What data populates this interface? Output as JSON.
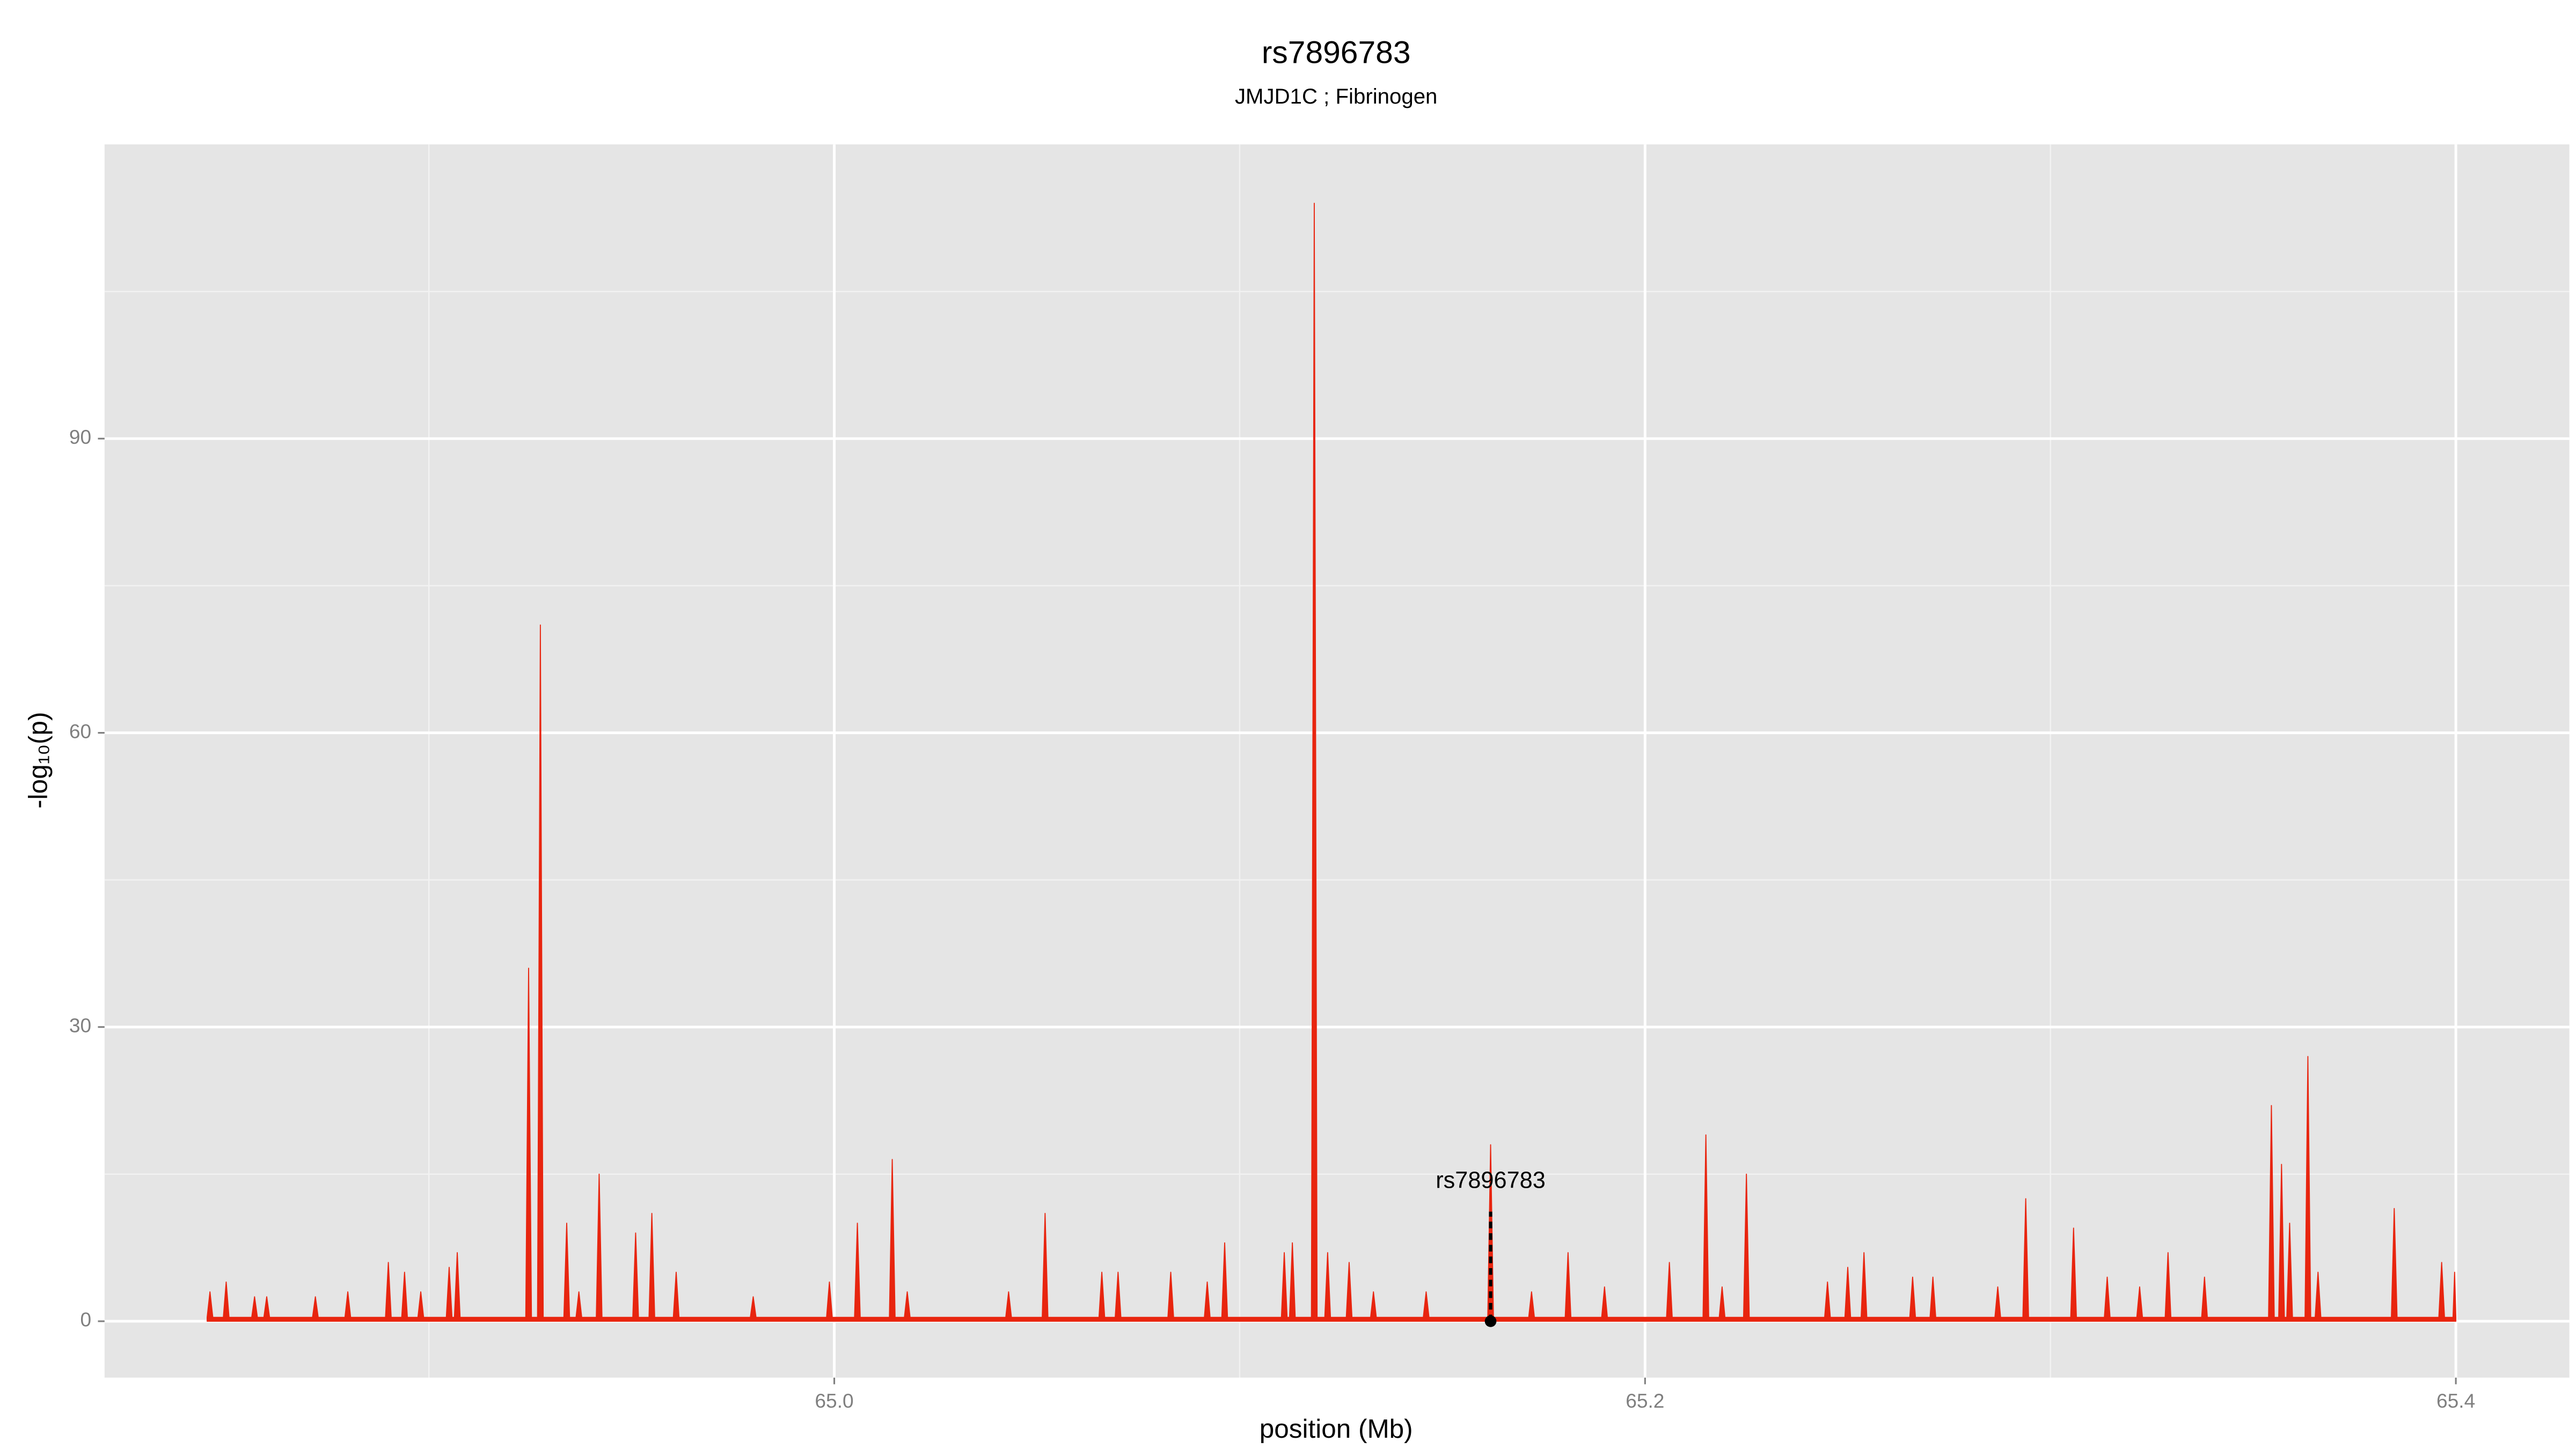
{
  "chart_data": {
    "type": "area",
    "title": "rs7896783",
    "subtitle": "JMJD1C ; Fibrinogen",
    "x_label": "position (Mb)",
    "y_label": "-log₁₀(p)",
    "xlim": [
      64.82,
      65.428
    ],
    "ylim": [
      -5.75,
      120
    ],
    "xticks": [
      {
        "value": 65,
        "label": "65.0"
      },
      {
        "value": 65.2,
        "label": "65.2"
      },
      {
        "value": 65.4,
        "label": "65.4"
      }
    ],
    "yticks": [
      0,
      30,
      60,
      90
    ],
    "grid": true,
    "color": "#e8250f",
    "annotation": {
      "text": "rs7896783",
      "x": 65.1619,
      "y": 0
    },
    "x": [
      64.8453,
      64.846,
      64.8467,
      64.8493,
      64.85,
      64.8507,
      64.8563,
      64.857,
      64.8577,
      64.8593,
      64.86,
      64.8607,
      64.8713,
      64.872,
      64.8727,
      64.8793,
      64.88,
      64.8807,
      64.8893,
      64.89,
      64.8907,
      64.8933,
      64.894,
      64.8947,
      64.8973,
      64.898,
      64.8987,
      64.9043,
      64.905,
      64.9057,
      64.9063,
      64.907,
      64.9077,
      64.9239,
      64.9246,
      64.9253,
      64.9268,
      64.9275,
      64.9282,
      64.9333,
      64.934,
      64.9347,
      64.9363,
      64.937,
      64.9377,
      64.9413,
      64.942,
      64.9427,
      64.9503,
      64.951,
      64.9517,
      64.9543,
      64.955,
      64.9557,
      64.9603,
      64.961,
      64.9617,
      64.9793,
      64.98,
      64.9807,
      64.9981,
      64.9988,
      64.9995,
      65.005,
      65.0057,
      65.0064,
      65.0136,
      65.0143,
      65.015,
      65.0173,
      65.018,
      65.0187,
      65.0423,
      65.043,
      65.0437,
      65.0513,
      65.052,
      65.0527,
      65.0653,
      65.066,
      65.0667,
      65.0693,
      65.07,
      65.0707,
      65.0823,
      65.083,
      65.0837,
      65.0913,
      65.092,
      65.0927,
      65.0956,
      65.0963,
      65.097,
      65.1103,
      65.111,
      65.1117,
      65.1123,
      65.113,
      65.1137,
      65.1177,
      65.1184,
      65.1191,
      65.121,
      65.1217,
      65.1224,
      65.1263,
      65.127,
      65.1277,
      65.1323,
      65.133,
      65.1337,
      65.1453,
      65.146,
      65.1467,
      65.1612,
      65.1619,
      65.1626,
      65.1713,
      65.172,
      65.1727,
      65.1803,
      65.181,
      65.1817,
      65.1893,
      65.19,
      65.1907,
      65.2053,
      65.206,
      65.2067,
      65.2143,
      65.215,
      65.2157,
      65.2183,
      65.219,
      65.2197,
      65.2243,
      65.225,
      65.2257,
      65.2443,
      65.245,
      65.2457,
      65.2493,
      65.25,
      65.2507,
      65.2533,
      65.254,
      65.2547,
      65.2653,
      65.266,
      65.2667,
      65.2703,
      65.271,
      65.2717,
      65.2863,
      65.287,
      65.2877,
      65.2932,
      65.2939,
      65.2946,
      65.305,
      65.3057,
      65.3064,
      65.3133,
      65.314,
      65.3147,
      65.3213,
      65.322,
      65.3227,
      65.3283,
      65.329,
      65.3297,
      65.3373,
      65.338,
      65.3387,
      65.3538,
      65.3545,
      65.3552,
      65.3563,
      65.357,
      65.3577,
      65.3583,
      65.359,
      65.3597,
      65.3628,
      65.3635,
      65.3642,
      65.3653,
      65.366,
      65.3667,
      65.3841,
      65.3848,
      65.3855,
      65.3958,
      65.3965,
      65.3972,
      65.3993,
      65.3997,
      65.4
    ],
    "values": [
      0.4,
      3,
      0.4,
      0.4,
      4,
      0.4,
      0.4,
      2.5,
      0.4,
      0.4,
      2.5,
      0.4,
      0.4,
      2.5,
      0.4,
      0.4,
      3,
      0.4,
      0.4,
      6,
      0.4,
      0.4,
      5,
      0.4,
      0.4,
      3,
      0.4,
      0.4,
      5.5,
      0.4,
      0.4,
      7,
      0.4,
      0.4,
      36,
      0.4,
      0.4,
      71,
      0.4,
      0.4,
      10,
      0.4,
      0.4,
      3,
      0.4,
      0.4,
      15,
      0.4,
      0.4,
      9,
      0.4,
      0.4,
      11,
      0.4,
      0.4,
      5,
      0.4,
      0.4,
      2.5,
      0.4,
      0.4,
      4,
      0.4,
      0.4,
      10,
      0.4,
      0.4,
      16.5,
      0.4,
      0.4,
      3,
      0.4,
      0.4,
      3,
      0.4,
      0.4,
      11,
      0.4,
      0.4,
      5,
      0.4,
      0.4,
      5,
      0.4,
      0.4,
      5,
      0.4,
      0.4,
      4,
      0.4,
      0.4,
      8,
      0.4,
      0.4,
      7,
      0.4,
      0.4,
      8,
      0.4,
      0.4,
      114,
      0.4,
      0.4,
      7,
      0.4,
      0.4,
      6,
      0.4,
      0.4,
      3,
      0.4,
      0.4,
      3,
      0.4,
      0.4,
      18,
      0.4,
      0.4,
      3,
      0.4,
      0.4,
      7,
      0.4,
      0.4,
      3.5,
      0.4,
      0.4,
      6,
      0.4,
      0.4,
      19,
      0.4,
      0.4,
      3.5,
      0.4,
      0.4,
      15,
      0.4,
      0.4,
      4,
      0.4,
      0.4,
      5.5,
      0.4,
      0.4,
      7,
      0.4,
      0.4,
      4.5,
      0.4,
      0.4,
      4.5,
      0.4,
      0.4,
      3.5,
      0.4,
      0.4,
      12.5,
      0.4,
      0.4,
      9.5,
      0.4,
      0.4,
      4.5,
      0.4,
      0.4,
      3.5,
      0.4,
      0.4,
      7,
      0.4,
      0.4,
      4.5,
      0.4,
      0.4,
      22,
      0.4,
      0.4,
      16,
      0.4,
      0.4,
      10,
      0.4,
      0.4,
      27,
      0.4,
      0.4,
      5,
      0.4,
      0.4,
      11.5,
      0.4,
      0.4,
      6,
      0.4,
      0.4,
      5,
      0.4
    ]
  }
}
